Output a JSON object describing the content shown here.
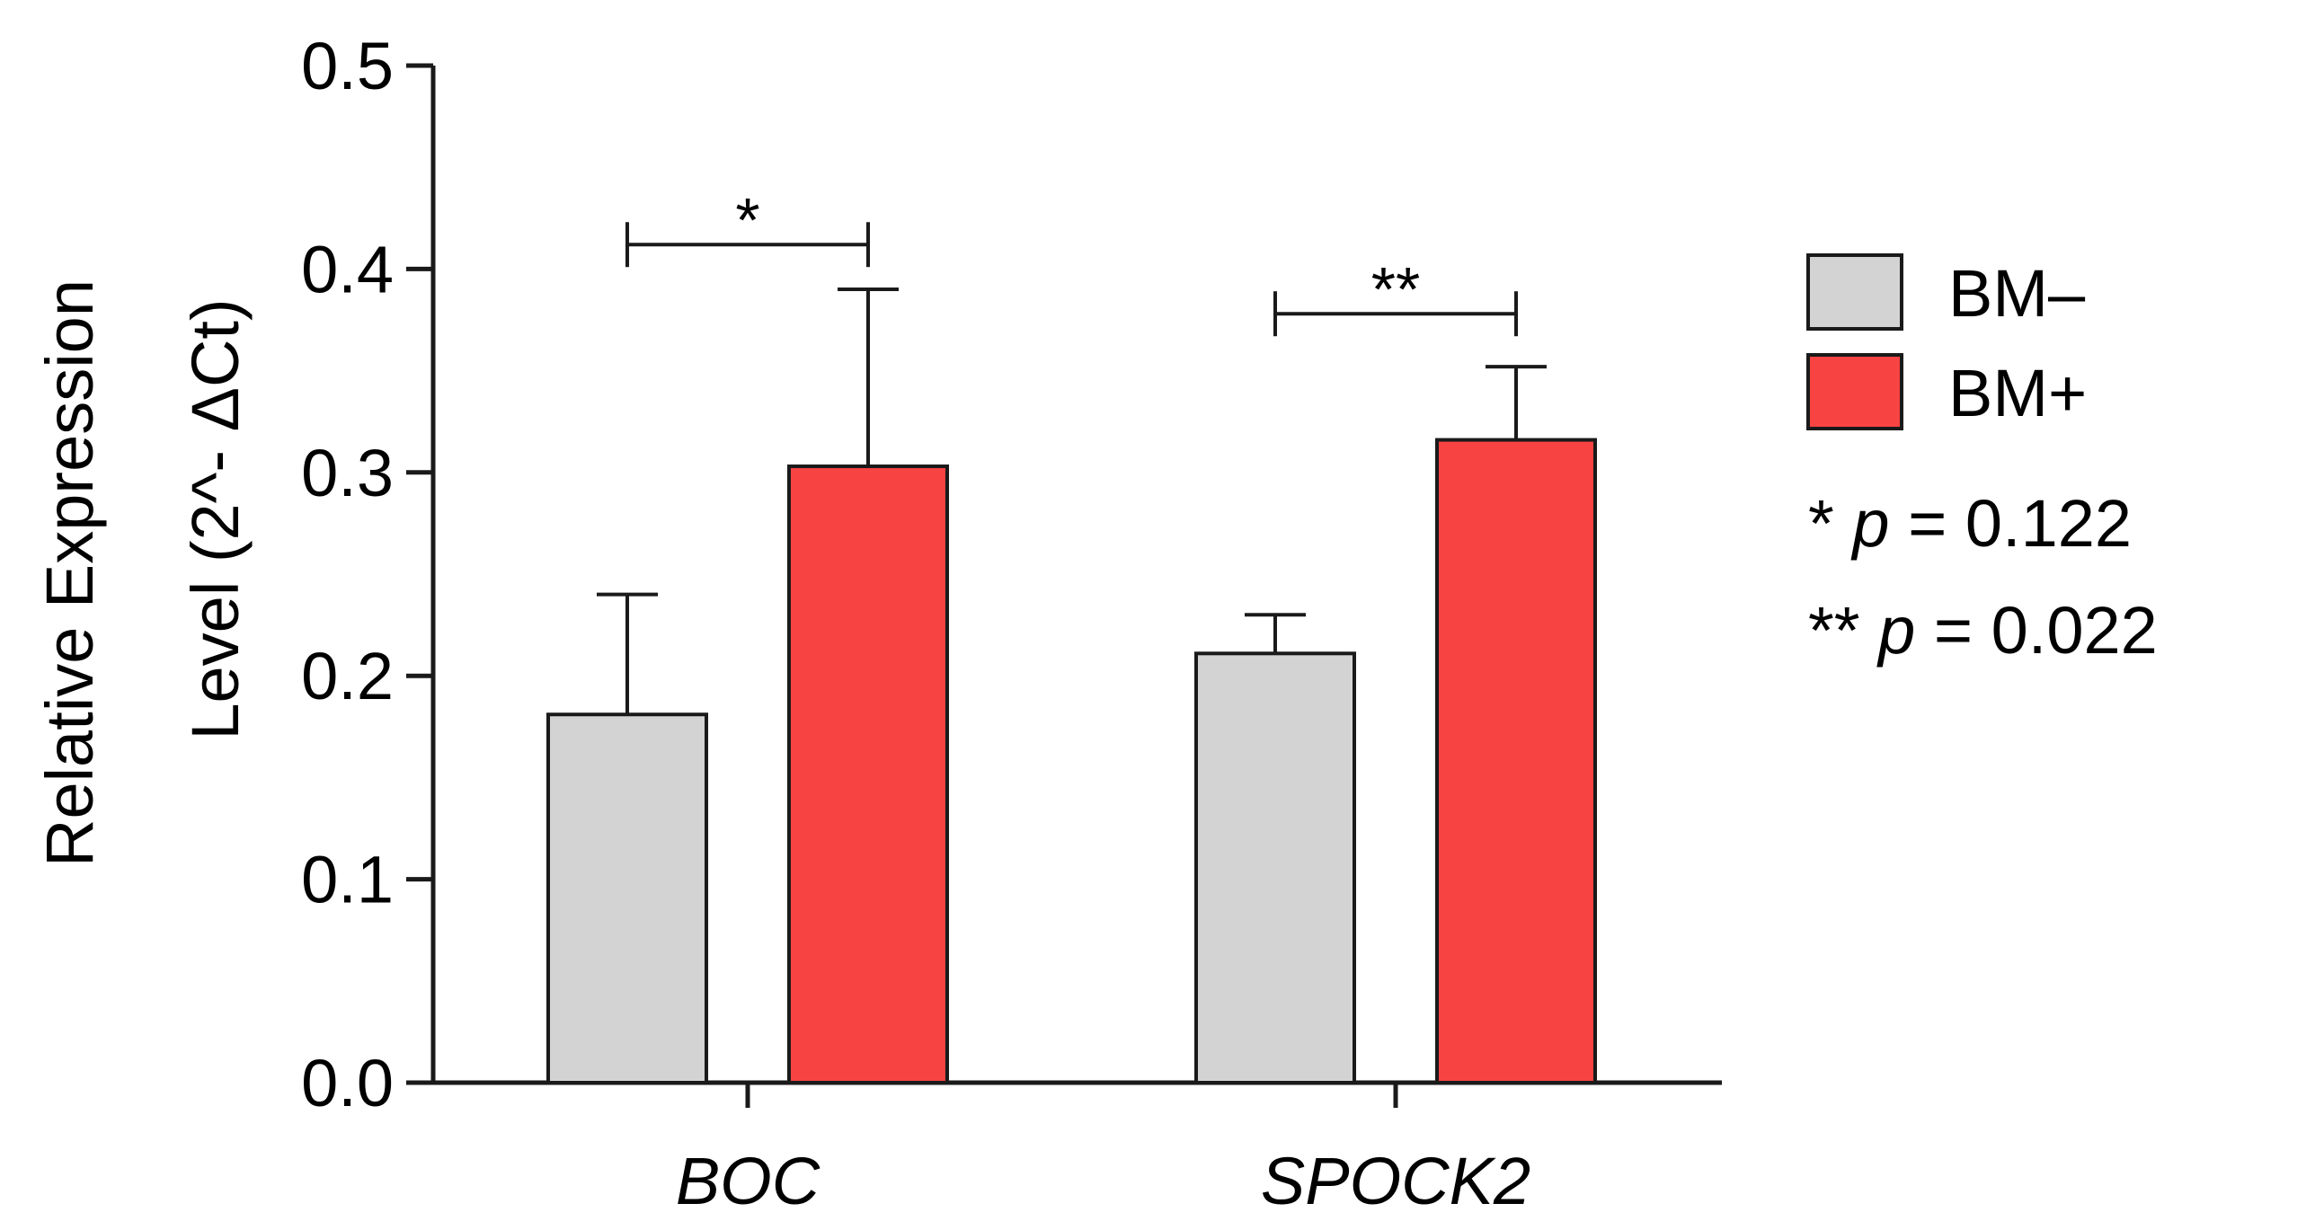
{
  "chart_data": {
    "type": "bar",
    "categories": [
      "BOC",
      "SPOCK2"
    ],
    "series": [
      {
        "name": "BM–",
        "color": "#d3d3d3",
        "values": [
          0.181,
          0.211
        ],
        "errors": [
          0.059,
          0.019
        ]
      },
      {
        "name": "BM+",
        "color": "#f84343",
        "values": [
          0.303,
          0.316
        ],
        "errors": [
          0.087,
          0.036
        ]
      }
    ],
    "ylabel_line1": "Relative Expression",
    "ylabel_line2": "Level (2^- ΔCt)",
    "xlabel": "",
    "ylim": [
      0,
      0.5
    ],
    "yticks": [
      0.0,
      0.1,
      0.2,
      0.3,
      0.4,
      0.5
    ],
    "ytick_labels": [
      "0.0",
      "0.1",
      "0.2",
      "0.3",
      "0.4",
      "0.5"
    ],
    "grid": false,
    "legend_position": "right",
    "significance": [
      {
        "category": "BOC",
        "label": "*",
        "y": 0.412
      },
      {
        "category": "SPOCK2",
        "label": "**",
        "y": 0.378
      }
    ],
    "notes": [
      {
        "marker": "*",
        "p": "p",
        "rest": "= 0.122"
      },
      {
        "marker": "**",
        "p": "p",
        "rest": "= 0.022"
      }
    ]
  }
}
